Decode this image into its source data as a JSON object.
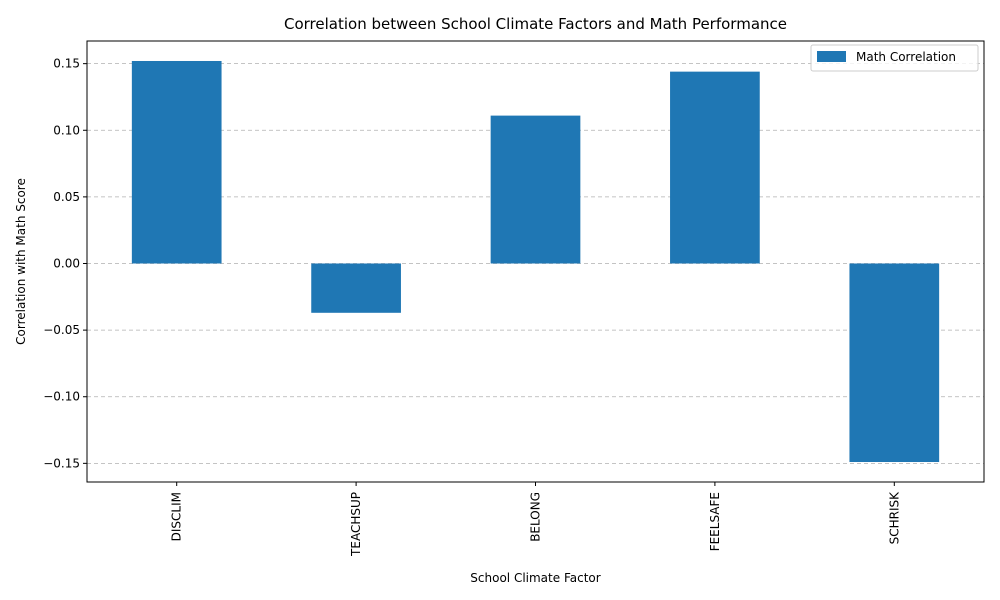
{
  "chart_data": {
    "type": "bar",
    "title": "Correlation between School Climate Factors and Math Performance",
    "xlabel": "School Climate Factor",
    "ylabel": "Correlation with Math Score",
    "categories": [
      "DISCLIM",
      "TEACHSUP",
      "BELONG",
      "FEELSAFE",
      "SCHRISK"
    ],
    "series": [
      {
        "name": "Math Correlation",
        "values": [
          0.152,
          -0.037,
          0.111,
          0.144,
          -0.149
        ],
        "color": "#1f77b4"
      }
    ],
    "ylim": [
      -0.164,
      0.167
    ],
    "yticks": [
      -0.15,
      -0.1,
      -0.05,
      0.0,
      0.05,
      0.1,
      0.15
    ],
    "ytick_labels": [
      "−0.15",
      "−0.10",
      "−0.05",
      "0.00",
      "0.05",
      "0.10",
      "0.15"
    ],
    "grid": true,
    "grid_axis": "y",
    "legend_position": "top-right"
  }
}
